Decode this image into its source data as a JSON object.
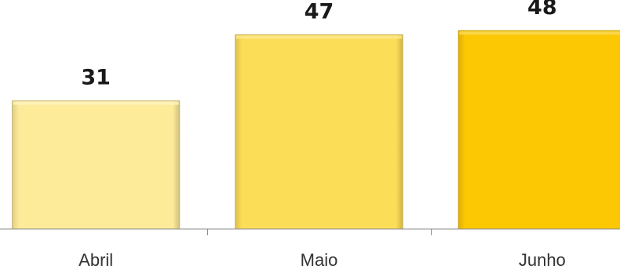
{
  "chart_data": {
    "type": "bar",
    "categories": [
      "Abril",
      "Maio",
      "Junho"
    ],
    "values": [
      31,
      47,
      48
    ],
    "title": "",
    "xlabel": "",
    "ylabel": "",
    "ylim": [
      0,
      57.5
    ],
    "grid": false,
    "legend": "none",
    "colors": [
      "#FDEB9A",
      "#FCDD58",
      "#FCC804"
    ],
    "axis_color": "#8c8c8c"
  }
}
